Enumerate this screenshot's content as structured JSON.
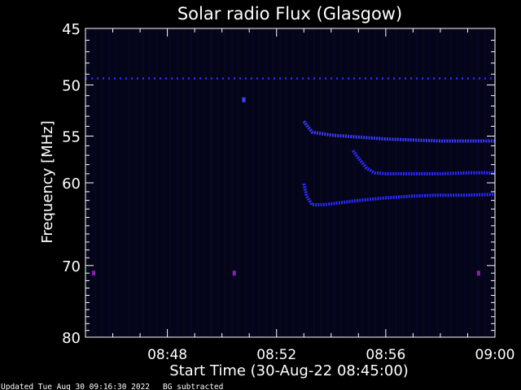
{
  "chart_data": {
    "type": "heatmap",
    "title": "Solar radio Flux (Glasgow)",
    "xlabel": "Start Time (30-Aug-22 08:45:00)",
    "ylabel": "Frequency [MHz]",
    "x_unit": "minutes after 08:45:00",
    "xlim": [
      0,
      15
    ],
    "ylim": [
      45,
      80
    ],
    "y_inverted": true,
    "y_scale": "log",
    "x_ticks": [
      {
        "value": 3,
        "label": "08:48"
      },
      {
        "value": 7,
        "label": "08:52"
      },
      {
        "value": 11,
        "label": "08:56"
      },
      {
        "value": 15,
        "label": "09:00"
      }
    ],
    "y_ticks": [
      {
        "value": 45,
        "label": "45"
      },
      {
        "value": 50,
        "label": "50"
      },
      {
        "value": 55,
        "label": "55"
      },
      {
        "value": 60,
        "label": "60"
      },
      {
        "value": 70,
        "label": "70"
      },
      {
        "value": 80,
        "label": "80"
      }
    ],
    "colors": {
      "background": "#000000",
      "plot_bg": "#05051a",
      "signal": "#2a2aff",
      "spot": "#8a1fb0",
      "axis": "#ffffff"
    },
    "features": [
      {
        "kind": "interference_line",
        "freq": 49.4,
        "x_range": [
          0,
          15
        ],
        "color": "#2a2aff"
      },
      {
        "kind": "burst_trace",
        "x": [
          8.0,
          8.3,
          9.0,
          10.0,
          11.0,
          12.0,
          13.0,
          14.0,
          15.0
        ],
        "freq": [
          53.5,
          54.6,
          54.9,
          55.1,
          55.3,
          55.4,
          55.5,
          55.5,
          55.5
        ],
        "color": "#3a3aff"
      },
      {
        "kind": "burst_trace",
        "x": [
          9.8,
          10.0,
          10.3,
          10.6,
          11.0,
          12.0,
          13.0,
          14.0,
          15.0
        ],
        "freq": [
          56.5,
          57.3,
          58.4,
          58.9,
          59.0,
          59.0,
          59.0,
          58.9,
          58.9
        ],
        "color": "#2a2aff"
      },
      {
        "kind": "burst_trace",
        "x": [
          8.0,
          8.1,
          8.3,
          8.7,
          9.0,
          10.0,
          11.0,
          12.0,
          13.0,
          14.0,
          15.0
        ],
        "freq": [
          60.1,
          61.5,
          62.5,
          62.5,
          62.4,
          62.0,
          61.7,
          61.5,
          61.4,
          61.4,
          61.3
        ],
        "color": "#2a2aff"
      },
      {
        "kind": "spot",
        "x": 5.8,
        "freq": 51.4,
        "color": "#4040ff"
      },
      {
        "kind": "spot",
        "x": 0.3,
        "freq": 71.0,
        "color": "#8a1fb0"
      },
      {
        "kind": "spot",
        "x": 5.45,
        "freq": 71.0,
        "color": "#8a1fb0"
      },
      {
        "kind": "spot",
        "x": 14.4,
        "freq": 71.0,
        "color": "#8a1fb0"
      }
    ]
  },
  "footer": {
    "updated": "Updated Tue Aug 30 09:16:30 2022",
    "note": "BG subtracted"
  }
}
